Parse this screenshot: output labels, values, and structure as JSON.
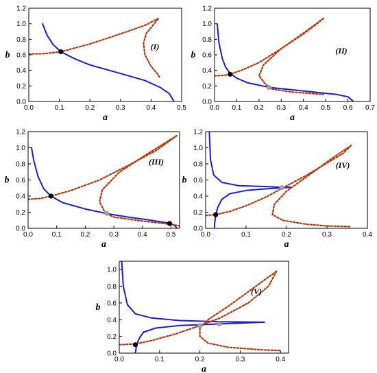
{
  "colors": {
    "solid": "#1c1ccf",
    "dotted": "#b03a0e",
    "black_point": "#000000",
    "grey_point": "#a0a0a0"
  },
  "chart_data": [
    {
      "type": "line",
      "label": "(I)",
      "xlabel": "a",
      "ylabel": "b",
      "xlim": [
        0,
        0.5
      ],
      "ylim": [
        0,
        1.2
      ],
      "xticks": [
        "0.0",
        "0.1",
        "0.2",
        "0.3",
        "0.4",
        "0.5"
      ],
      "yticks": [
        "0.0",
        "0.2",
        "0.4",
        "0.6",
        "0.8",
        "1.0",
        "1.2"
      ],
      "series": [
        {
          "style": "solid",
          "points": [
            [
              0.045,
              1.0
            ],
            [
              0.06,
              0.85
            ],
            [
              0.08,
              0.73
            ],
            [
              0.105,
              0.64
            ],
            [
              0.15,
              0.55
            ],
            [
              0.2,
              0.47
            ],
            [
              0.3,
              0.36
            ],
            [
              0.38,
              0.27
            ],
            [
              0.43,
              0.18
            ],
            [
              0.46,
              0.1
            ],
            [
              0.475,
              0.0
            ]
          ]
        },
        {
          "style": "dotted",
          "points": [
            [
              0.0,
              0.61
            ],
            [
              0.05,
              0.615
            ],
            [
              0.105,
              0.64
            ],
            [
              0.2,
              0.74
            ],
            [
              0.3,
              0.87
            ],
            [
              0.38,
              0.98
            ],
            [
              0.425,
              1.07
            ],
            [
              0.41,
              1.0
            ],
            [
              0.385,
              0.88
            ],
            [
              0.375,
              0.75
            ],
            [
              0.38,
              0.6
            ],
            [
              0.4,
              0.45
            ],
            [
              0.42,
              0.36
            ],
            [
              0.43,
              0.3
            ]
          ]
        }
      ],
      "points": [
        {
          "x": 0.105,
          "y": 0.64,
          "color": "black"
        }
      ]
    },
    {
      "type": "line",
      "label": "(II)",
      "xlabel": "a",
      "ylabel": "b",
      "xlim": [
        0,
        0.7
      ],
      "ylim": [
        0,
        1.2
      ],
      "xticks": [
        "0.0",
        "0.1",
        "0.2",
        "0.3",
        "0.4",
        "0.5",
        "0.6",
        "0.7"
      ],
      "yticks": [
        "0.0",
        "0.2",
        "0.4",
        "0.6",
        "0.8",
        "1.0",
        "1.2"
      ],
      "series": [
        {
          "style": "solid",
          "points": [
            [
              0.012,
              1.0
            ],
            [
              0.02,
              0.75
            ],
            [
              0.035,
              0.55
            ],
            [
              0.05,
              0.44
            ],
            [
              0.07,
              0.36
            ],
            [
              0.1,
              0.3
            ],
            [
              0.15,
              0.24
            ],
            [
              0.25,
              0.18
            ],
            [
              0.35,
              0.15
            ],
            [
              0.45,
              0.12
            ],
            [
              0.55,
              0.09
            ],
            [
              0.6,
              0.06
            ],
            [
              0.625,
              0.0
            ]
          ]
        },
        {
          "style": "dotted",
          "points": [
            [
              0.0,
              0.33
            ],
            [
              0.04,
              0.335
            ],
            [
              0.07,
              0.35
            ],
            [
              0.12,
              0.4
            ],
            [
              0.2,
              0.5
            ],
            [
              0.3,
              0.68
            ],
            [
              0.4,
              0.87
            ],
            [
              0.46,
              1.0
            ],
            [
              0.49,
              1.07
            ]
          ]
        },
        {
          "style": "dotted",
          "points": [
            [
              0.49,
              1.07
            ],
            [
              0.4,
              0.88
            ],
            [
              0.3,
              0.68
            ],
            [
              0.22,
              0.47
            ],
            [
              0.2,
              0.33
            ],
            [
              0.23,
              0.22
            ],
            [
              0.26,
              0.16
            ],
            [
              0.35,
              0.12
            ],
            [
              0.45,
              0.1
            ],
            [
              0.49,
              0.09
            ]
          ]
        }
      ],
      "points": [
        {
          "x": 0.07,
          "y": 0.35,
          "color": "black"
        },
        {
          "x": 0.245,
          "y": 0.18,
          "color": "grey"
        }
      ]
    },
    {
      "type": "line",
      "label": "(III)",
      "xlabel": "a",
      "ylabel": "b",
      "xlim": [
        0,
        0.53
      ],
      "ylim": [
        0,
        1.2
      ],
      "xticks": [
        "0.0",
        "0.1",
        "0.2",
        "0.3",
        "0.4",
        "0.5"
      ],
      "yticks": [
        "0.0",
        "0.2",
        "0.4",
        "0.6",
        "0.8",
        "1.0",
        "1.2"
      ],
      "series": [
        {
          "style": "solid",
          "points": [
            [
              0.012,
              1.0
            ],
            [
              0.02,
              0.84
            ],
            [
              0.035,
              0.64
            ],
            [
              0.055,
              0.49
            ],
            [
              0.08,
              0.4
            ],
            [
              0.12,
              0.32
            ],
            [
              0.2,
              0.24
            ],
            [
              0.28,
              0.18
            ],
            [
              0.35,
              0.14
            ],
            [
              0.43,
              0.1
            ],
            [
              0.5,
              0.06
            ],
            [
              0.515,
              0.03
            ],
            [
              0.52,
              0.0
            ]
          ]
        },
        {
          "style": "dotted",
          "points": [
            [
              0.0,
              0.36
            ],
            [
              0.04,
              0.37
            ],
            [
              0.08,
              0.4
            ],
            [
              0.15,
              0.47
            ],
            [
              0.25,
              0.6
            ],
            [
              0.35,
              0.78
            ],
            [
              0.45,
              0.97
            ],
            [
              0.52,
              1.15
            ]
          ]
        },
        {
          "style": "dotted",
          "points": [
            [
              0.52,
              1.15
            ],
            [
              0.42,
              0.93
            ],
            [
              0.32,
              0.7
            ],
            [
              0.26,
              0.48
            ],
            [
              0.25,
              0.33
            ],
            [
              0.27,
              0.19
            ],
            [
              0.3,
              0.14
            ],
            [
              0.4,
              0.09
            ],
            [
              0.5,
              0.05
            ],
            [
              0.53,
              0.03
            ]
          ]
        }
      ],
      "points": [
        {
          "x": 0.08,
          "y": 0.4,
          "color": "black"
        },
        {
          "x": 0.275,
          "y": 0.185,
          "color": "grey"
        },
        {
          "x": 0.495,
          "y": 0.06,
          "color": "black"
        }
      ]
    },
    {
      "type": "line",
      "label": "(IV)",
      "xlabel": "a",
      "ylabel": "b",
      "xlim": [
        0,
        0.4
      ],
      "ylim": [
        0,
        1.2
      ],
      "xticks": [
        "0.0",
        "0.1",
        "0.2",
        "0.3",
        "0.4"
      ],
      "yticks": [
        "0.0",
        "0.2",
        "0.4",
        "0.6",
        "0.8",
        "1.0",
        "1.2"
      ],
      "series": [
        {
          "style": "solid",
          "points": [
            [
              0.009,
              1.2
            ],
            [
              0.012,
              0.85
            ],
            [
              0.02,
              0.66
            ],
            [
              0.04,
              0.57
            ],
            [
              0.08,
              0.53
            ],
            [
              0.14,
              0.52
            ],
            [
              0.19,
              0.51
            ],
            [
              0.21,
              0.51
            ]
          ]
        },
        {
          "style": "solid",
          "points": [
            [
              0.21,
              0.51
            ],
            [
              0.15,
              0.49
            ],
            [
              0.1,
              0.47
            ],
            [
              0.06,
              0.43
            ],
            [
              0.04,
              0.36
            ],
            [
              0.03,
              0.26
            ],
            [
              0.025,
              0.17
            ],
            [
              0.022,
              0.05
            ],
            [
              0.022,
              0.0
            ]
          ]
        },
        {
          "style": "dotted",
          "points": [
            [
              0.0,
              0.16
            ],
            [
              0.025,
              0.17
            ],
            [
              0.06,
              0.21
            ],
            [
              0.1,
              0.28
            ],
            [
              0.15,
              0.39
            ],
            [
              0.19,
              0.5
            ],
            [
              0.25,
              0.66
            ],
            [
              0.3,
              0.81
            ],
            [
              0.34,
              0.93
            ],
            [
              0.36,
              1.03
            ]
          ]
        },
        {
          "style": "dotted",
          "points": [
            [
              0.36,
              1.03
            ],
            [
              0.31,
              0.86
            ],
            [
              0.25,
              0.64
            ],
            [
              0.2,
              0.46
            ],
            [
              0.17,
              0.3
            ],
            [
              0.165,
              0.17
            ],
            [
              0.19,
              0.1
            ],
            [
              0.25,
              0.05
            ],
            [
              0.3,
              0.03
            ],
            [
              0.36,
              0.02
            ]
          ]
        }
      ],
      "points": [
        {
          "x": 0.025,
          "y": 0.17,
          "color": "black"
        },
        {
          "x": 0.188,
          "y": 0.505,
          "color": "grey"
        }
      ]
    },
    {
      "type": "line",
      "label": "(V)",
      "xlabel": "a",
      "ylabel": "b",
      "xlim": [
        0,
        0.42
      ],
      "ylim": [
        0,
        1.1
      ],
      "xticks": [
        "0.0",
        "0.1",
        "0.2",
        "0.3",
        "0.4"
      ],
      "yticks": [
        "0.0",
        "0.2",
        "0.4",
        "0.6",
        "0.8",
        "1.0"
      ],
      "series": [
        {
          "style": "solid",
          "points": [
            [
              0.006,
              1.1
            ],
            [
              0.01,
              0.8
            ],
            [
              0.02,
              0.58
            ],
            [
              0.04,
              0.47
            ],
            [
              0.08,
              0.42
            ],
            [
              0.15,
              0.39
            ],
            [
              0.25,
              0.375
            ],
            [
              0.36,
              0.37
            ]
          ]
        },
        {
          "style": "solid",
          "points": [
            [
              0.36,
              0.37
            ],
            [
              0.25,
              0.35
            ],
            [
              0.15,
              0.33
            ],
            [
              0.09,
              0.3
            ],
            [
              0.06,
              0.25
            ],
            [
              0.05,
              0.18
            ],
            [
              0.043,
              0.1
            ],
            [
              0.04,
              0.0
            ]
          ]
        },
        {
          "style": "dotted",
          "points": [
            [
              0.0,
              0.1
            ],
            [
              0.04,
              0.11
            ],
            [
              0.08,
              0.15
            ],
            [
              0.14,
              0.23
            ],
            [
              0.2,
              0.33
            ],
            [
              0.25,
              0.42
            ],
            [
              0.32,
              0.6
            ],
            [
              0.37,
              0.8
            ],
            [
              0.39,
              0.98
            ]
          ]
        },
        {
          "style": "dotted",
          "points": [
            [
              0.39,
              0.98
            ],
            [
              0.33,
              0.77
            ],
            [
              0.27,
              0.56
            ],
            [
              0.22,
              0.4
            ],
            [
              0.2,
              0.3
            ],
            [
              0.2,
              0.2
            ],
            [
              0.22,
              0.12
            ],
            [
              0.27,
              0.07
            ],
            [
              0.35,
              0.04
            ],
            [
              0.4,
              0.03
            ]
          ]
        }
      ],
      "points": [
        {
          "x": 0.04,
          "y": 0.1,
          "color": "black"
        },
        {
          "x": 0.2,
          "y": 0.33,
          "color": "grey"
        },
        {
          "x": 0.248,
          "y": 0.35,
          "color": "grey"
        }
      ]
    }
  ]
}
